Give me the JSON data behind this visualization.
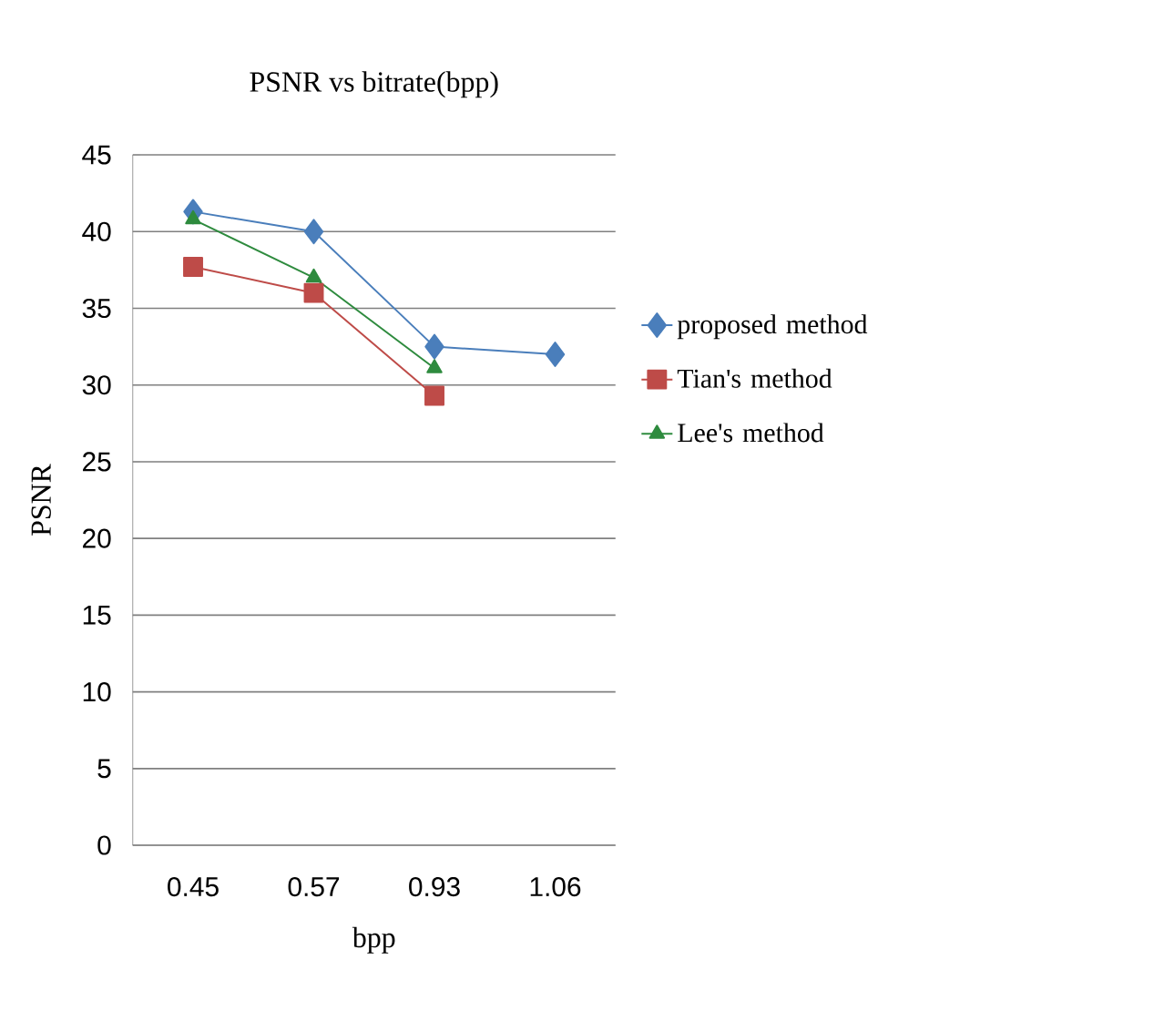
{
  "chart_data": {
    "type": "line",
    "title": "PSNR vs bitrate(bpp)",
    "xlabel": "bpp",
    "ylabel": "PSNR",
    "categories": [
      "0.45",
      "0.57",
      "0.93",
      "1.06"
    ],
    "series": [
      {
        "name": "proposed method",
        "color": "#4a7ebb",
        "marker": "diamond",
        "values": [
          41.3,
          40.0,
          32.5,
          32.0
        ]
      },
      {
        "name": "Tian's method",
        "color": "#be4b48",
        "marker": "square",
        "values": [
          37.7,
          36.0,
          29.3,
          null
        ]
      },
      {
        "name": "Lee's method",
        "color": "#2e8b3e",
        "marker": "triangle",
        "values": [
          40.8,
          37.0,
          31.1,
          null
        ]
      }
    ],
    "ylim": [
      0,
      45
    ],
    "yticks": [
      0,
      5,
      10,
      15,
      20,
      25,
      30,
      35,
      40,
      45
    ],
    "grid": "y",
    "legend": "right"
  }
}
